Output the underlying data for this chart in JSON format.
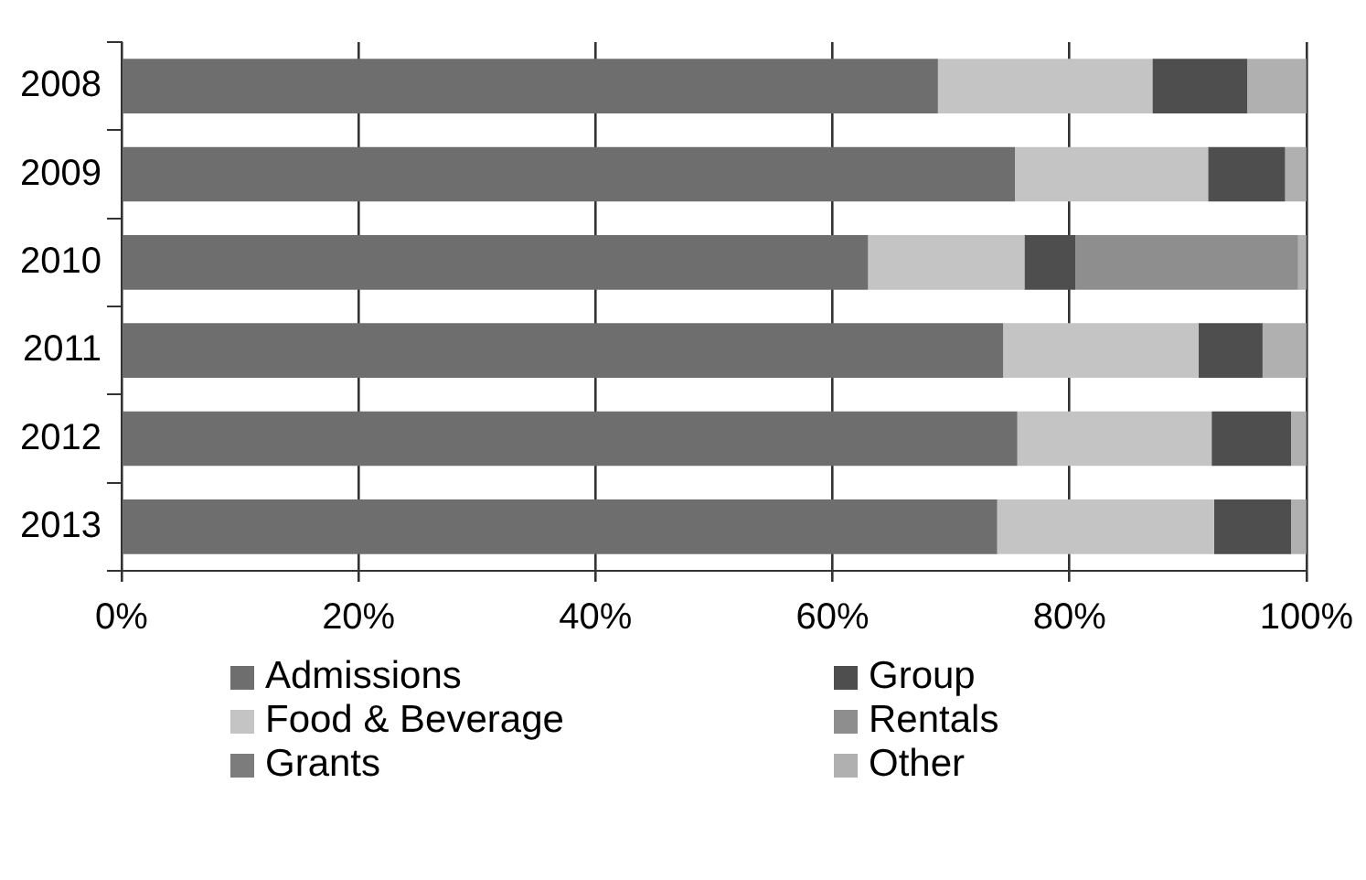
{
  "chart_data": {
    "type": "bar",
    "orientation": "horizontal",
    "stacked": true,
    "categories": [
      "2008",
      "2009",
      "2010",
      "2011",
      "2012",
      "2013"
    ],
    "series": [
      {
        "name": "Admissions",
        "color": "#6e6e6e",
        "values": [
          68.9,
          75.4,
          63.0,
          74.4,
          75.6,
          73.9
        ]
      },
      {
        "name": "Food & Beverage",
        "color": "#c4c4c4",
        "values": [
          18.1,
          16.3,
          13.2,
          16.5,
          16.4,
          18.3
        ]
      },
      {
        "name": "Grants",
        "color": "#7c7c7c",
        "values": [
          0,
          0,
          0,
          0,
          0,
          0
        ]
      },
      {
        "name": "Group",
        "color": "#4e4e4e",
        "values": [
          8.0,
          6.5,
          4.3,
          5.4,
          6.7,
          6.5
        ]
      },
      {
        "name": "Rentals",
        "color": "#8e8e8e",
        "values": [
          0,
          0,
          18.8,
          0,
          0,
          0
        ]
      },
      {
        "name": "Other",
        "color": "#b0b0b0",
        "values": [
          5.0,
          1.8,
          0.7,
          3.7,
          1.3,
          1.3
        ]
      }
    ],
    "xlim": [
      0,
      100
    ],
    "xticks": [
      {
        "value": 0,
        "label": "0%"
      },
      {
        "value": 20,
        "label": "20%"
      },
      {
        "value": 40,
        "label": "40%"
      },
      {
        "value": 60,
        "label": "60%"
      },
      {
        "value": 80,
        "label": "80%"
      },
      {
        "value": 100,
        "label": "100%"
      }
    ],
    "grid": "x",
    "legend": "bottom"
  }
}
